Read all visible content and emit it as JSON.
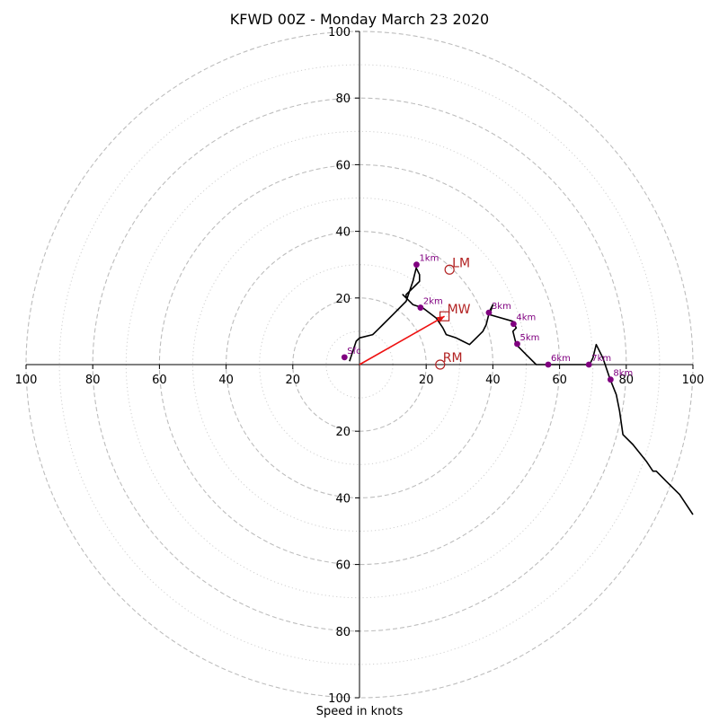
{
  "chart_data": {
    "type": "hodograph",
    "title": "KFWD 00Z - Monday March 23 2020",
    "xlabel": "Speed in knots",
    "max_speed": 100,
    "major_rings": [
      20,
      40,
      60,
      80,
      100
    ],
    "minor_rings": [
      10,
      30,
      50,
      70,
      90
    ],
    "ring_labels": [
      "20",
      "40",
      "60",
      "80",
      "100"
    ],
    "grid": true,
    "trace": [
      [
        -3,
        1
      ],
      [
        -1,
        7
      ],
      [
        0,
        8
      ],
      [
        4,
        9
      ],
      [
        6,
        11
      ],
      [
        7,
        12
      ],
      [
        10,
        15
      ],
      [
        14,
        19
      ],
      [
        16,
        25
      ],
      [
        17,
        29
      ],
      [
        18,
        27
      ],
      [
        18,
        25
      ],
      [
        17,
        24
      ],
      [
        14,
        21
      ],
      [
        14,
        20
      ],
      [
        13,
        21
      ],
      [
        16,
        18
      ],
      [
        19,
        17
      ],
      [
        23,
        14
      ],
      [
        25,
        11
      ],
      [
        26,
        9
      ],
      [
        29,
        8
      ],
      [
        31,
        7
      ],
      [
        33,
        6
      ],
      [
        35,
        8
      ],
      [
        37,
        10
      ],
      [
        38,
        12
      ],
      [
        39,
        16
      ],
      [
        40,
        18
      ],
      [
        39,
        15
      ],
      [
        46,
        13
      ],
      [
        47,
        11
      ],
      [
        46,
        10
      ],
      [
        47,
        6
      ],
      [
        48,
        5
      ],
      [
        50,
        3
      ],
      [
        53,
        0
      ],
      [
        57,
        0
      ],
      [
        62,
        0
      ],
      [
        69,
        0
      ],
      [
        70,
        2
      ],
      [
        71,
        6
      ],
      [
        73,
        2
      ],
      [
        75,
        -4
      ],
      [
        77,
        -9
      ],
      [
        78,
        -14
      ],
      [
        79,
        -21
      ],
      [
        82,
        -24
      ],
      [
        86,
        -29
      ],
      [
        88,
        -32
      ],
      [
        89,
        -32
      ],
      [
        92,
        -35
      ],
      [
        96,
        -39
      ],
      [
        100,
        -45
      ]
    ],
    "height_markers": [
      {
        "label": "Sfc",
        "u": -4.5,
        "v": 2.2
      },
      {
        "label": "1km",
        "u": 17.1,
        "v": 30.0
      },
      {
        "label": "2km",
        "u": 18.3,
        "v": 17.1
      },
      {
        "label": "3km",
        "u": 38.8,
        "v": 15.6
      },
      {
        "label": "4km",
        "u": 46.2,
        "v": 12.2
      },
      {
        "label": "5km",
        "u": 47.3,
        "v": 6.2
      },
      {
        "label": "6km",
        "u": 56.6,
        "v": 0.0
      },
      {
        "label": "7km",
        "u": 68.8,
        "v": 0.0
      },
      {
        "label": "8km",
        "u": 75.3,
        "v": -4.5
      }
    ],
    "storm_motions": [
      {
        "label": "LM",
        "u": 27.0,
        "v": 28.5,
        "marker": "circle"
      },
      {
        "label": "MW",
        "u": 25.5,
        "v": 14.5,
        "marker": "square"
      },
      {
        "label": "RM",
        "u": 24.2,
        "v": 0.0,
        "marker": "circle"
      }
    ],
    "colors": {
      "trace": "#000000",
      "height_marker": "#800080",
      "storm_motion": "#b22222",
      "arrow": "#ee1111",
      "major_grid": "#bdbdbd",
      "minor_grid": "#d0d0d0",
      "axes": "#000000"
    }
  }
}
